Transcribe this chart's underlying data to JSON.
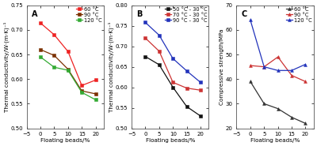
{
  "panel_A": {
    "label": "A",
    "x": [
      0,
      5,
      10,
      15,
      20
    ],
    "series": [
      {
        "label": "60 °C",
        "color": "#EE2222",
        "marker": "s",
        "y": [
          0.714,
          0.69,
          0.656,
          0.587,
          0.598
        ]
      },
      {
        "label": "90 °C",
        "color": "#7B3000",
        "marker": "s",
        "y": [
          0.66,
          0.648,
          0.62,
          0.576,
          0.57
        ]
      },
      {
        "label": "120 °C",
        "color": "#33AA33",
        "marker": "s",
        "y": [
          0.645,
          0.624,
          0.618,
          0.573,
          0.558
        ]
      }
    ],
    "ylabel": "Thermal conductivity/W·(m·K)⁻¹",
    "xlabel": "Floating beads/%",
    "ylim": [
      0.5,
      0.75
    ],
    "yticks": [
      0.5,
      0.55,
      0.6,
      0.65,
      0.7,
      0.75
    ],
    "xlim": [
      -5,
      23
    ],
    "xticks": [
      -5,
      0,
      5,
      10,
      15,
      20
    ]
  },
  "panel_B": {
    "label": "B",
    "x": [
      0,
      5,
      10,
      15,
      20
    ],
    "series": [
      {
        "label": "50 °C - 30 °C",
        "color": "#111111",
        "marker": "s",
        "y": [
          0.675,
          0.655,
          0.6,
          0.553,
          0.53
        ]
      },
      {
        "label": "70 °C - 30 °C",
        "color": "#CC3333",
        "marker": "s",
        "y": [
          0.72,
          0.688,
          0.612,
          0.598,
          0.593
        ]
      },
      {
        "label": "90 °C - 30 °C",
        "color": "#2233BB",
        "marker": "s",
        "y": [
          0.758,
          0.727,
          0.67,
          0.64,
          0.612
        ]
      }
    ],
    "ylabel": "Thermal conductivity/W·(m·K)⁻¹",
    "xlabel": "Floating beads/%",
    "ylim": [
      0.5,
      0.8
    ],
    "yticks": [
      0.5,
      0.55,
      0.6,
      0.65,
      0.7,
      0.75,
      0.8
    ],
    "xlim": [
      -5,
      23
    ],
    "xticks": [
      -5,
      0,
      5,
      10,
      15,
      20
    ]
  },
  "panel_C": {
    "label": "C",
    "x": [
      0,
      5,
      10,
      15,
      20
    ],
    "series": [
      {
        "label": "60 °C",
        "color": "#333333",
        "marker": "^",
        "y": [
          39.0,
          30.0,
          28.0,
          24.5,
          22.0
        ]
      },
      {
        "label": "90 °C",
        "color": "#CC3333",
        "marker": "^",
        "y": [
          45.5,
          45.0,
          49.0,
          41.5,
          39.0
        ]
      },
      {
        "label": "120 °C",
        "color": "#2233BB",
        "marker": "^",
        "y": [
          64.0,
          45.0,
          43.5,
          43.5,
          46.0
        ]
      }
    ],
    "ylabel": "Compressive strength/MPa",
    "xlabel": "Floating beads/%",
    "ylim": [
      20,
      70
    ],
    "yticks": [
      20,
      30,
      40,
      50,
      60,
      70
    ],
    "xlim": [
      -5,
      23
    ],
    "xticks": [
      -5,
      0,
      5,
      10,
      15,
      20
    ]
  },
  "background_color": "#FFFFFF",
  "legend_fontsize": 4.8,
  "axis_fontsize": 5.2,
  "tick_fontsize": 5.0,
  "linewidth": 0.9,
  "markersize": 2.8
}
